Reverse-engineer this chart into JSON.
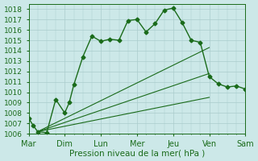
{
  "title": "",
  "xlabel": "Pression niveau de la mer( hPa )",
  "ylabel": "",
  "background_color": "#cce8e8",
  "grid_color": "#aacccc",
  "line_color": "#1a6b1a",
  "ylim": [
    1006,
    1018.5
  ],
  "yticks": [
    1006,
    1007,
    1008,
    1009,
    1010,
    1011,
    1012,
    1013,
    1014,
    1015,
    1016,
    1017,
    1018
  ],
  "x_labels": [
    "Mar",
    "Dim",
    "Lun",
    "Mer",
    "Jeu",
    "Ven",
    "Sam"
  ],
  "x_tick_positions": [
    0,
    4,
    8,
    12,
    16,
    20,
    24
  ],
  "xlim": [
    0,
    24
  ],
  "series_main": {
    "x": [
      0,
      0.5,
      1,
      2,
      3,
      4,
      4.5,
      5,
      6,
      7,
      8,
      9,
      10,
      11,
      12,
      13,
      14,
      15,
      16,
      17,
      18,
      19,
      20,
      21,
      22,
      23,
      24
    ],
    "y": [
      1007.5,
      1006.8,
      1006.2,
      1006.1,
      1009.3,
      1008.0,
      1009.0,
      1010.7,
      1013.4,
      1015.4,
      1014.9,
      1015.1,
      1015.0,
      1016.9,
      1017.0,
      1015.8,
      1016.6,
      1017.9,
      1018.1,
      1016.7,
      1015.0,
      1014.8,
      1011.5,
      1010.8,
      1010.5,
      1010.6,
      1010.3
    ],
    "linewidth": 1.0,
    "markersize": 2.5
  },
  "series_fan": [
    {
      "x": [
        1,
        20
      ],
      "y": [
        1006.2,
        1009.5
      ]
    },
    {
      "x": [
        1,
        20
      ],
      "y": [
        1006.2,
        1011.8
      ]
    },
    {
      "x": [
        1,
        20
      ],
      "y": [
        1006.2,
        1014.3
      ]
    }
  ],
  "fan_linewidth": 0.8,
  "xlabel_fontsize": 7.5,
  "ytick_fontsize": 6.5,
  "xtick_fontsize": 7.0
}
